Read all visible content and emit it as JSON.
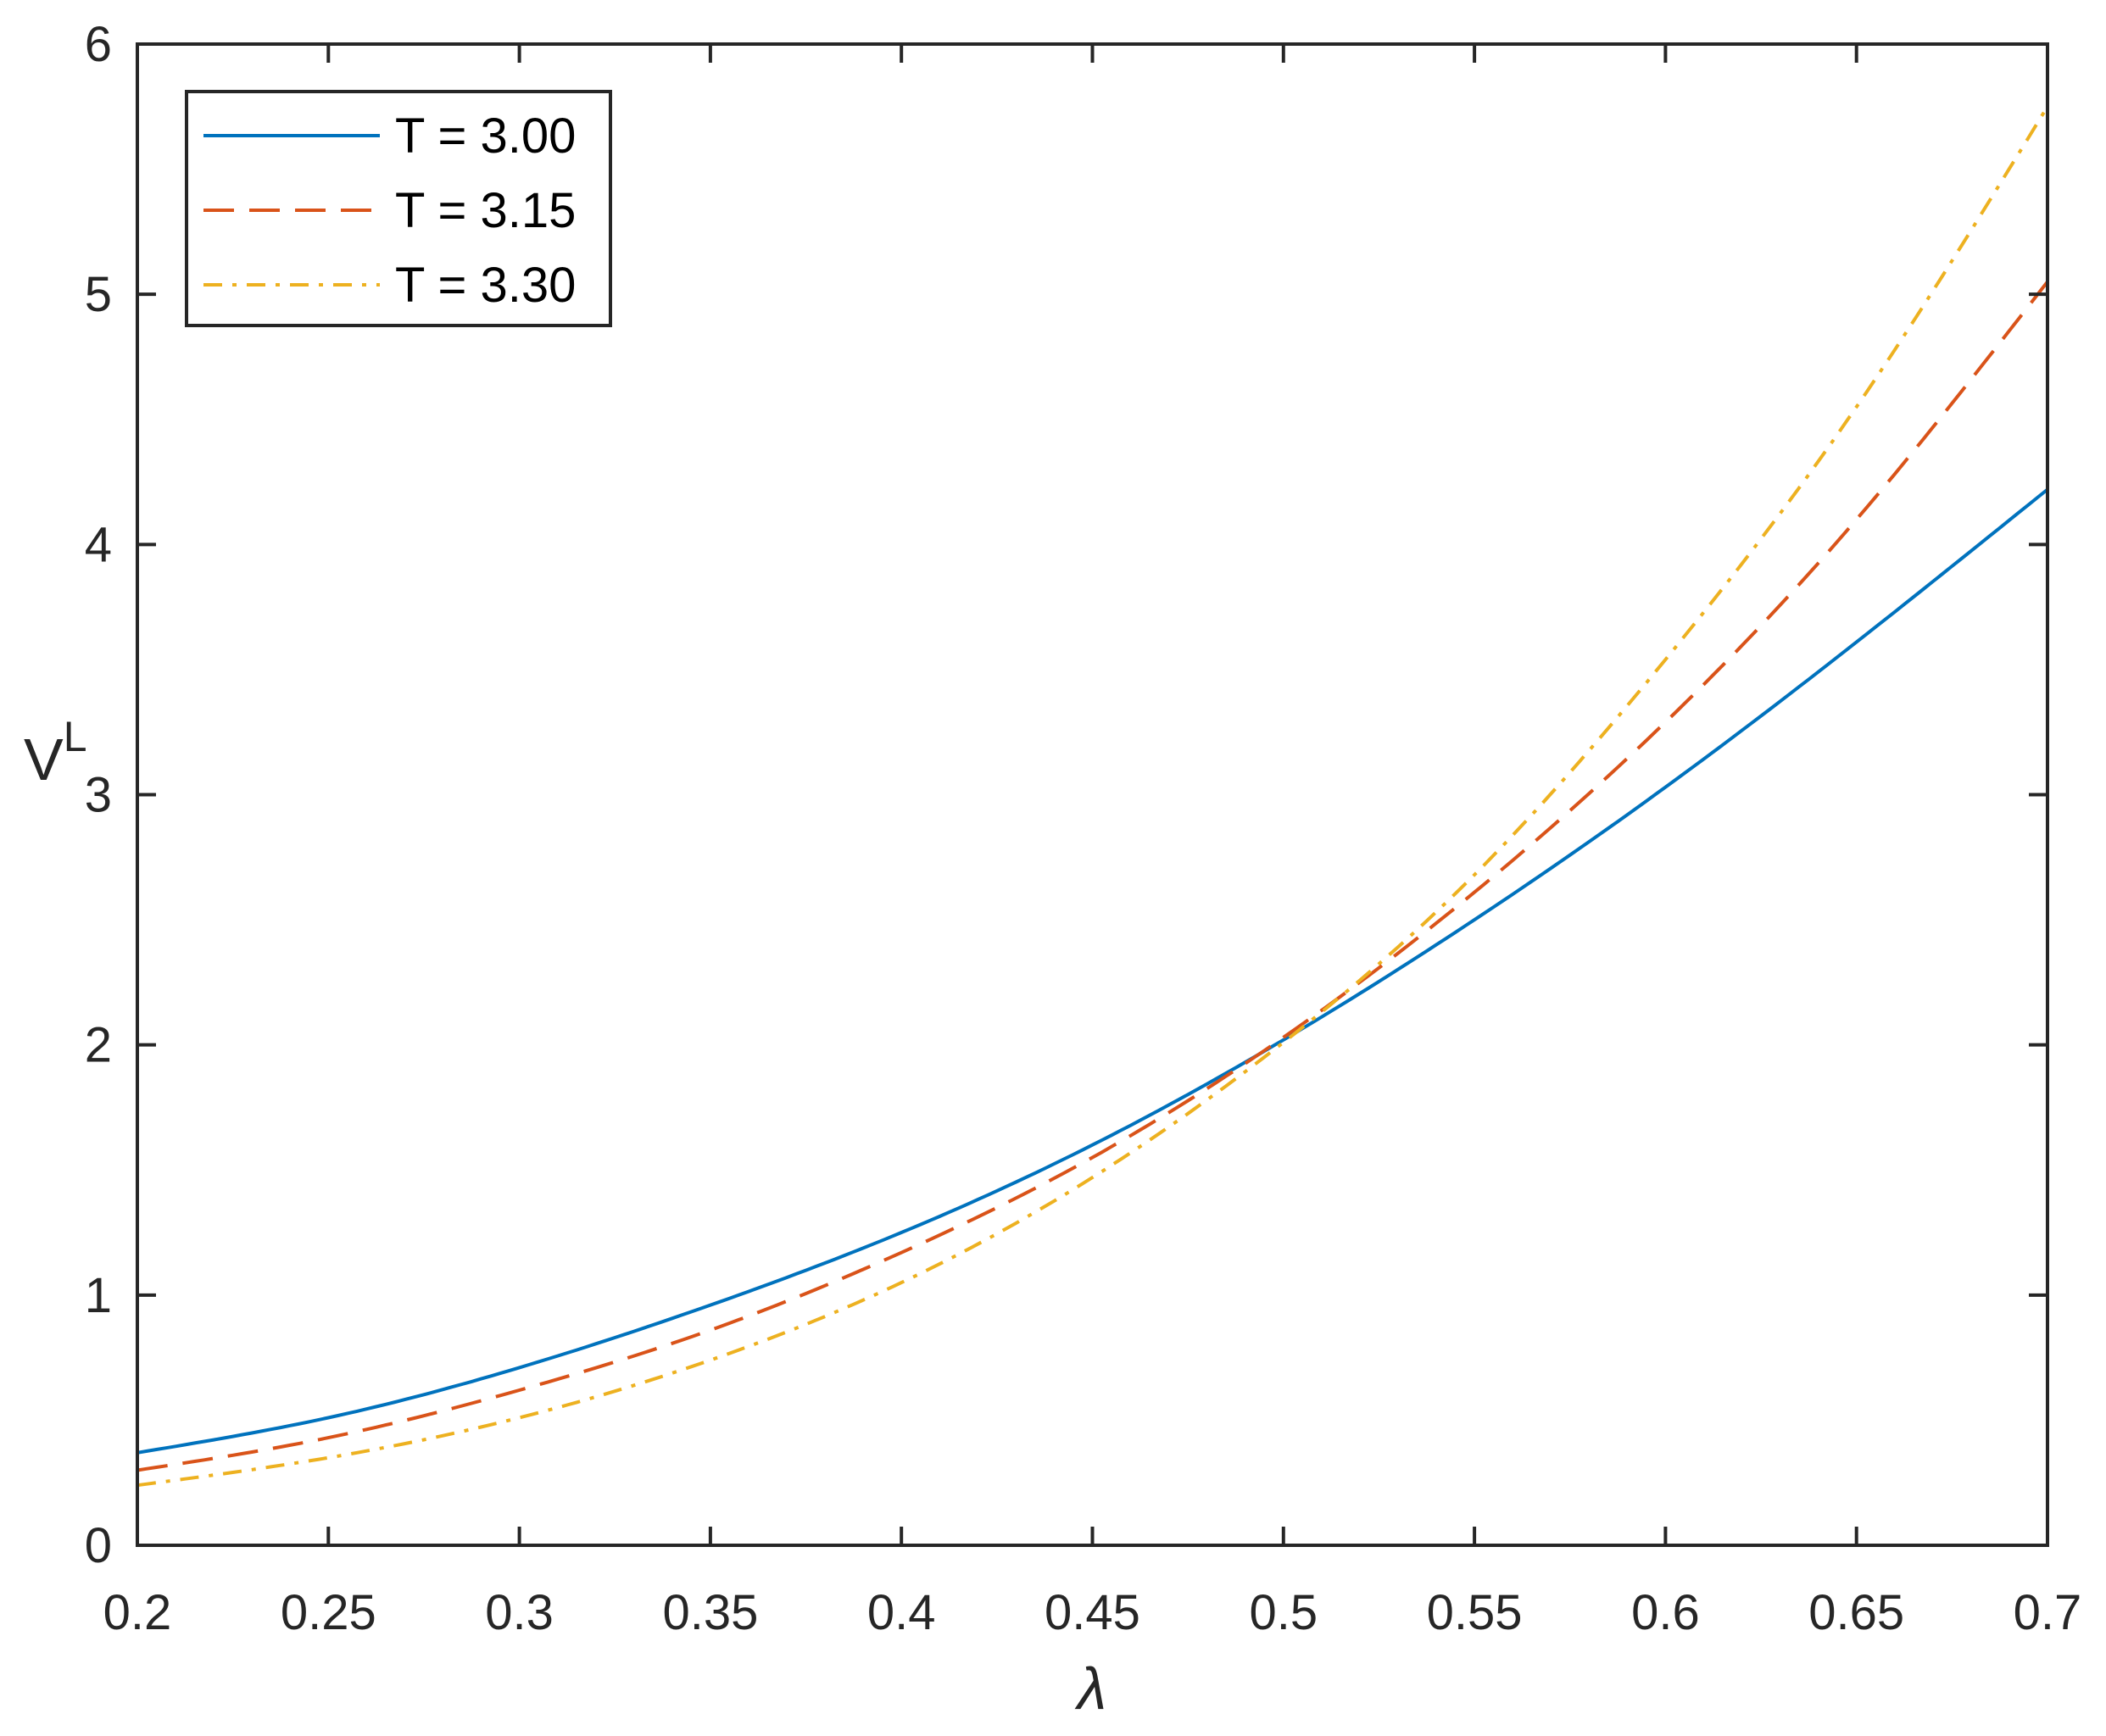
{
  "chart_data": {
    "type": "line",
    "title": "",
    "xlabel": "λ",
    "ylabel": "V",
    "ylabel_superscript": "L",
    "xlim": [
      0.2,
      0.7
    ],
    "ylim": [
      0,
      6
    ],
    "xticks": [
      0.2,
      0.25,
      0.3,
      0.35,
      0.4,
      0.45,
      0.5,
      0.55,
      0.6,
      0.65,
      0.7
    ],
    "xtick_labels": [
      "0.2",
      "0.25",
      "0.3",
      "0.35",
      "0.4",
      "0.45",
      "0.5",
      "0.55",
      "0.6",
      "0.65",
      "0.7"
    ],
    "yticks": [
      0,
      1,
      2,
      3,
      4,
      5,
      6
    ],
    "ytick_labels": [
      "0",
      "1",
      "2",
      "3",
      "4",
      "5",
      "6"
    ],
    "grid": false,
    "legend_position": "top-left",
    "x": [
      0.2,
      0.25,
      0.3,
      0.35,
      0.4,
      0.45,
      0.5,
      0.55,
      0.6,
      0.65,
      0.7
    ],
    "series": [
      {
        "name": "T = 3.00",
        "color": "#0072BD",
        "style": "solid",
        "values": [
          0.37,
          0.51,
          0.71,
          0.96,
          1.25,
          1.6,
          2.02,
          2.5,
          3.03,
          3.61,
          4.22
        ]
      },
      {
        "name": "T = 3.15",
        "color": "#D95319",
        "style": "dashed",
        "values": [
          0.3,
          0.43,
          0.62,
          0.86,
          1.17,
          1.55,
          2.03,
          2.61,
          3.29,
          4.1,
          5.05
        ]
      },
      {
        "name": "T = 3.30",
        "color": "#EDB120",
        "style": "dashdot",
        "values": [
          0.24,
          0.35,
          0.51,
          0.74,
          1.05,
          1.47,
          2.01,
          2.68,
          3.54,
          4.55,
          5.75
        ]
      }
    ]
  }
}
